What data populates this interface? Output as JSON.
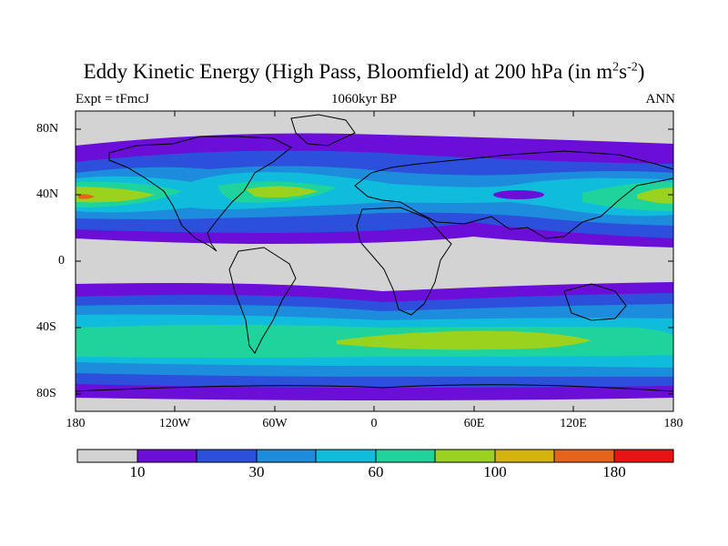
{
  "title": {
    "prefix": "Eddy Kinetic Energy (High Pass, Bloomfield) at 200 hPa (in m",
    "sup1": "2",
    "mid": "s",
    "sup2": "-2",
    "suffix": ")"
  },
  "subtitle_left": "Expt = tFmcJ",
  "subtitle_center": "1060kyr BP",
  "subtitle_right": "ANN",
  "y_axis": {
    "labels": [
      "80N",
      "40N",
      "0",
      "40S",
      "80S"
    ]
  },
  "x_axis": {
    "labels": [
      "180",
      "120W",
      "60W",
      "0",
      "60E",
      "120E",
      "180"
    ]
  },
  "colorbar": {
    "colors": [
      "#d3d3d3",
      "#6a0ed8",
      "#2c50dc",
      "#1e8cdc",
      "#10bcdc",
      "#1ed49c",
      "#9ad21e",
      "#d4b40c",
      "#e6641a",
      "#e61414"
    ],
    "labels": [
      "10",
      "30",
      "60",
      "100",
      "180"
    ]
  }
}
